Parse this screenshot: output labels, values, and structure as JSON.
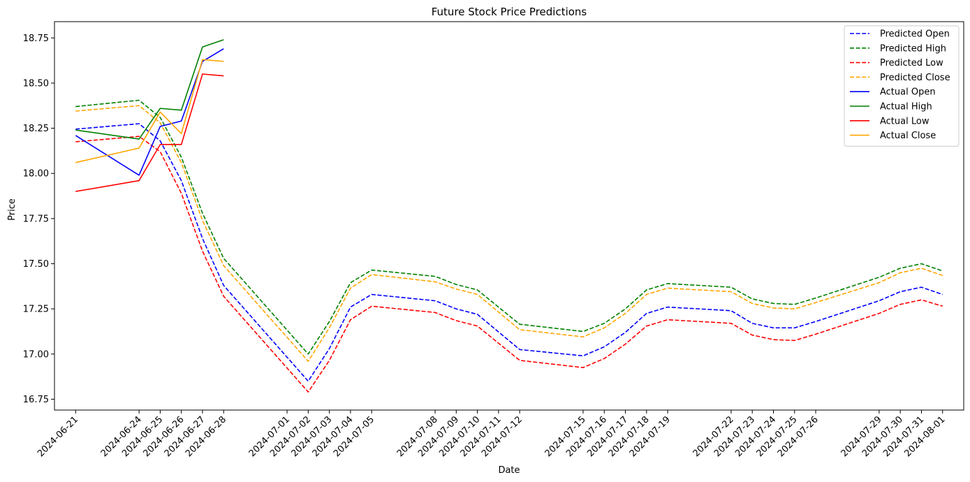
{
  "chart_data": {
    "type": "line",
    "title": "Future Stock Price Predictions",
    "xlabel": "Date",
    "ylabel": "Price",
    "ylim": [
      16.69,
      18.84
    ],
    "yticks": [
      "16.75",
      "17.00",
      "17.25",
      "17.50",
      "17.75",
      "18.00",
      "18.25",
      "18.50",
      "18.75"
    ],
    "xlim": [
      "2024-06-20T00:00",
      "2024-08-02T00:00"
    ],
    "xticks": [
      "2024-06-21",
      "2024-06-24",
      "2024-06-25",
      "2024-06-26",
      "2024-06-27",
      "2024-06-28",
      "2024-07-01",
      "2024-07-02",
      "2024-07-03",
      "2024-07-04",
      "2024-07-05",
      "2024-07-08",
      "2024-07-09",
      "2024-07-10",
      "2024-07-11",
      "2024-07-12",
      "2024-07-15",
      "2024-07-16",
      "2024-07-17",
      "2024-07-18",
      "2024-07-19",
      "2024-07-22",
      "2024-07-23",
      "2024-07-24",
      "2024-07-25",
      "2024-07-26",
      "2024-07-29",
      "2024-07-30",
      "2024-07-31",
      "2024-08-01"
    ],
    "legend_position": "top-right",
    "grid": false,
    "series": [
      {
        "name": "Predicted Open",
        "color": "#0000ff",
        "style": "dashed",
        "x": [
          "2024-06-21",
          "2024-06-24",
          "2024-06-25",
          "2024-06-26",
          "2024-06-27",
          "2024-06-28",
          "2024-07-02",
          "2024-07-03",
          "2024-07-04",
          "2024-07-05",
          "2024-07-08",
          "2024-07-09",
          "2024-07-10",
          "2024-07-12",
          "2024-07-15",
          "2024-07-16",
          "2024-07-17",
          "2024-07-18",
          "2024-07-19",
          "2024-07-22",
          "2024-07-23",
          "2024-07-24",
          "2024-07-25",
          "2024-07-26",
          "2024-07-29",
          "2024-07-30",
          "2024-07-31",
          "2024-08-01"
        ],
        "y": [
          18.245,
          18.275,
          18.18,
          17.96,
          17.64,
          17.38,
          16.85,
          17.03,
          17.26,
          17.33,
          17.295,
          17.25,
          17.22,
          17.025,
          16.99,
          17.04,
          17.12,
          17.225,
          17.26,
          17.24,
          17.17,
          17.145,
          17.145,
          17.18,
          17.295,
          17.345,
          17.37,
          17.33
        ]
      },
      {
        "name": "Predicted High",
        "color": "#008000",
        "style": "dashed",
        "x": [
          "2024-06-21",
          "2024-06-24",
          "2024-06-25",
          "2024-06-26",
          "2024-06-27",
          "2024-06-28",
          "2024-07-02",
          "2024-07-03",
          "2024-07-04",
          "2024-07-05",
          "2024-07-08",
          "2024-07-09",
          "2024-07-10",
          "2024-07-12",
          "2024-07-15",
          "2024-07-16",
          "2024-07-17",
          "2024-07-18",
          "2024-07-19",
          "2024-07-22",
          "2024-07-23",
          "2024-07-24",
          "2024-07-25",
          "2024-07-26",
          "2024-07-29",
          "2024-07-30",
          "2024-07-31",
          "2024-08-01"
        ],
        "y": [
          18.37,
          18.405,
          18.31,
          18.09,
          17.78,
          17.53,
          17.0,
          17.18,
          17.395,
          17.465,
          17.43,
          17.385,
          17.355,
          17.165,
          17.125,
          17.17,
          17.25,
          17.355,
          17.39,
          17.37,
          17.305,
          17.28,
          17.275,
          17.31,
          17.425,
          17.475,
          17.5,
          17.46
        ]
      },
      {
        "name": "Predicted Low",
        "color": "#ff0000",
        "style": "dashed",
        "x": [
          "2024-06-21",
          "2024-06-24",
          "2024-06-25",
          "2024-06-26",
          "2024-06-27",
          "2024-06-28",
          "2024-07-02",
          "2024-07-03",
          "2024-07-04",
          "2024-07-05",
          "2024-07-08",
          "2024-07-09",
          "2024-07-10",
          "2024-07-12",
          "2024-07-15",
          "2024-07-16",
          "2024-07-17",
          "2024-07-18",
          "2024-07-19",
          "2024-07-22",
          "2024-07-23",
          "2024-07-24",
          "2024-07-25",
          "2024-07-26",
          "2024-07-29",
          "2024-07-30",
          "2024-07-31",
          "2024-08-01"
        ],
        "y": [
          18.175,
          18.205,
          18.12,
          17.89,
          17.57,
          17.32,
          16.79,
          16.965,
          17.19,
          17.265,
          17.23,
          17.185,
          17.155,
          16.965,
          16.925,
          16.975,
          17.055,
          17.155,
          17.19,
          17.17,
          17.105,
          17.08,
          17.075,
          17.11,
          17.225,
          17.275,
          17.3,
          17.265
        ]
      },
      {
        "name": "Predicted Close",
        "color": "#ffa500",
        "style": "dashed",
        "x": [
          "2024-06-21",
          "2024-06-24",
          "2024-06-25",
          "2024-06-26",
          "2024-06-27",
          "2024-06-28",
          "2024-07-02",
          "2024-07-03",
          "2024-07-04",
          "2024-07-05",
          "2024-07-08",
          "2024-07-09",
          "2024-07-10",
          "2024-07-12",
          "2024-07-15",
          "2024-07-16",
          "2024-07-17",
          "2024-07-18",
          "2024-07-19",
          "2024-07-22",
          "2024-07-23",
          "2024-07-24",
          "2024-07-25",
          "2024-07-26",
          "2024-07-29",
          "2024-07-30",
          "2024-07-31",
          "2024-08-01"
        ],
        "y": [
          18.345,
          18.375,
          18.28,
          18.06,
          17.74,
          17.49,
          16.96,
          17.145,
          17.365,
          17.44,
          17.4,
          17.36,
          17.33,
          17.135,
          17.095,
          17.145,
          17.225,
          17.33,
          17.365,
          17.345,
          17.28,
          17.255,
          17.25,
          17.285,
          17.395,
          17.45,
          17.475,
          17.435
        ]
      },
      {
        "name": "Actual Open",
        "color": "#0000ff",
        "style": "solid",
        "x": [
          "2024-06-21",
          "2024-06-24",
          "2024-06-25",
          "2024-06-26",
          "2024-06-27",
          "2024-06-28"
        ],
        "y": [
          18.21,
          17.99,
          18.26,
          18.29,
          18.62,
          18.69
        ]
      },
      {
        "name": "Actual High",
        "color": "#008000",
        "style": "solid",
        "x": [
          "2024-06-21",
          "2024-06-24",
          "2024-06-25",
          "2024-06-26",
          "2024-06-27",
          "2024-06-28"
        ],
        "y": [
          18.24,
          18.19,
          18.36,
          18.35,
          18.7,
          18.74
        ]
      },
      {
        "name": "Actual Low",
        "color": "#ff0000",
        "style": "solid",
        "x": [
          "2024-06-21",
          "2024-06-24",
          "2024-06-25",
          "2024-06-26",
          "2024-06-27",
          "2024-06-28"
        ],
        "y": [
          17.9,
          17.96,
          18.16,
          18.16,
          18.55,
          18.54
        ]
      },
      {
        "name": "Actual Close",
        "color": "#ffa500",
        "style": "solid",
        "x": [
          "2024-06-21",
          "2024-06-24",
          "2024-06-25",
          "2024-06-26",
          "2024-06-27",
          "2024-06-28"
        ],
        "y": [
          18.06,
          18.14,
          18.34,
          18.22,
          18.63,
          18.62
        ]
      }
    ]
  }
}
